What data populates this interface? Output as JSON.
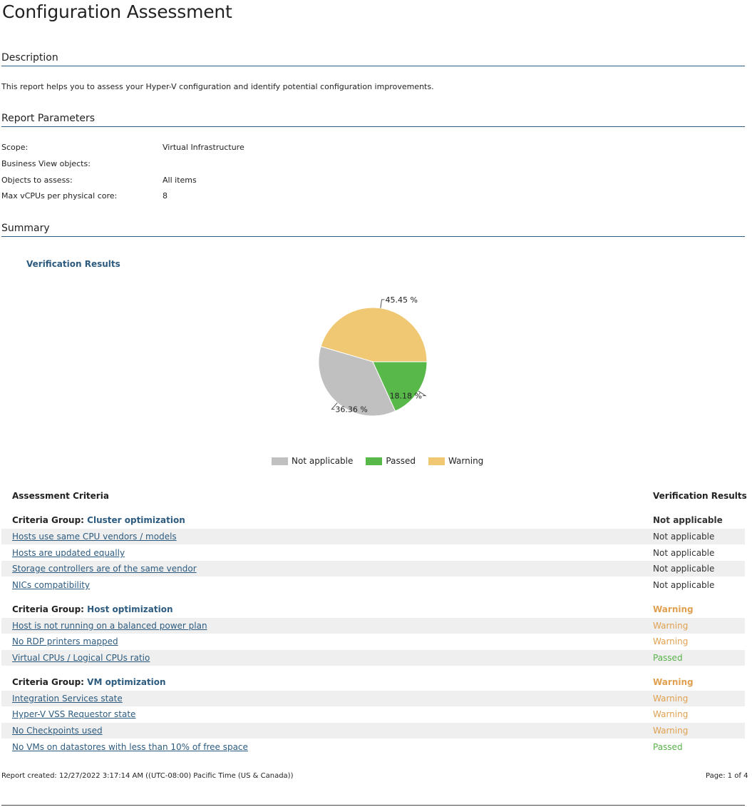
{
  "header": {
    "title": "Configuration Assessment"
  },
  "description": {
    "heading": "Description",
    "text": "This report helps you to assess your Hyper-V configuration and identify potential configuration improvements."
  },
  "parameters": {
    "heading": "Report Parameters",
    "items": [
      {
        "label": "Scope:",
        "value": "Virtual Infrastructure"
      },
      {
        "label": "Business View objects:",
        "value": ""
      },
      {
        "label": "Objects to assess:",
        "value": "All items"
      },
      {
        "label": "Max vCPUs per physical core:",
        "value": "8"
      }
    ]
  },
  "summary": {
    "heading": "Summary",
    "chart_title": "Verification Results"
  },
  "chart_data": {
    "type": "pie",
    "title": "Verification Results",
    "slices": [
      {
        "name": "Warning",
        "value": 45.45,
        "label": "45.45 %",
        "color": "#f0c874"
      },
      {
        "name": "Not applicable",
        "value": 36.36,
        "label": "36.36 %",
        "color": "#c0c0c0"
      },
      {
        "name": "Passed",
        "value": 18.18,
        "label": "18.18 %",
        "color": "#58b84a"
      }
    ],
    "legend": [
      {
        "name": "Not applicable",
        "color": "#c0c0c0"
      },
      {
        "name": "Passed",
        "color": "#58b84a"
      },
      {
        "name": "Warning",
        "color": "#f0c874"
      }
    ],
    "legend_position": "bottom"
  },
  "table": {
    "col_criteria": "Assessment Criteria",
    "col_results": "Verification Results",
    "group_prefix": "Criteria Group:",
    "groups": [
      {
        "name": "Cluster optimization",
        "status": "Not applicable",
        "items": [
          {
            "name": "Hosts use same CPU vendors / models",
            "status": "Not applicable"
          },
          {
            "name": "Hosts are updated equally",
            "status": "Not applicable"
          },
          {
            "name": "Storage controllers are of the same vendor",
            "status": "Not applicable"
          },
          {
            "name": "NICs compatibility",
            "status": "Not applicable"
          }
        ]
      },
      {
        "name": "Host optimization",
        "status": "Warning",
        "items": [
          {
            "name": "Host is not running on a balanced power plan",
            "status": "Warning"
          },
          {
            "name": "No RDP printers mapped",
            "status": "Warning"
          },
          {
            "name": "Virtual CPUs / Logical CPUs ratio",
            "status": "Passed"
          }
        ]
      },
      {
        "name": "VM optimization",
        "status": "Warning",
        "items": [
          {
            "name": "Integration Services state",
            "status": "Warning"
          },
          {
            "name": "Hyper-V VSS Requestor state",
            "status": "Warning"
          },
          {
            "name": "No Checkpoints used",
            "status": "Warning"
          },
          {
            "name": "No VMs on datastores with less than 10% of free space",
            "status": "Passed"
          }
        ]
      }
    ]
  },
  "footer": {
    "created": "Report created: 12/27/2022 3:17:14 AM ((UTC-08:00) Pacific Time (US & Canada))",
    "page": "Page: 1 of 4"
  }
}
